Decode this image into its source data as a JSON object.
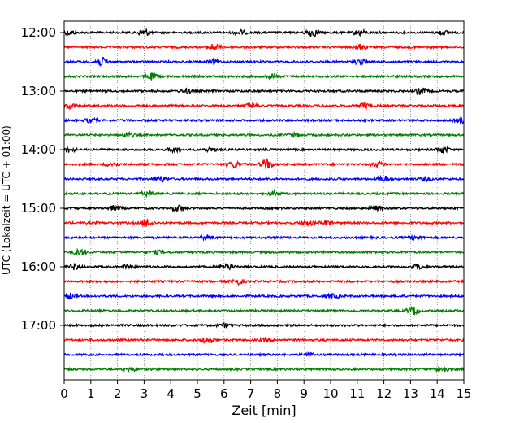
{
  "chart_data": {
    "type": "line",
    "title": "",
    "xlabel": "Zeit  [min]",
    "ylabel": "UTC (Lokalzeit = UTC + 01:00)",
    "xlim": [
      0,
      15
    ],
    "x_ticks": [
      "0",
      "1",
      "2",
      "3",
      "4",
      "5",
      "6",
      "7",
      "8",
      "9",
      "10",
      "11",
      "12",
      "13",
      "14",
      "15"
    ],
    "y_ticks": [
      "12:00",
      "13:00",
      "14:00",
      "15:00",
      "16:00",
      "17:00"
    ],
    "grid": "vertical dotted at each minute",
    "trace_interval_minutes": 15,
    "colors": [
      "#000000",
      "#ff0000",
      "#0000ff",
      "#008000"
    ],
    "traces": [
      {
        "start": "12:00",
        "color": "#000000",
        "bursts": [
          [
            0.2,
            0.8
          ],
          [
            3.0,
            1.4
          ],
          [
            6.6,
            0.9
          ],
          [
            9.3,
            1.6
          ],
          [
            11.1,
            1.0
          ],
          [
            14.2,
            0.8
          ]
        ]
      },
      {
        "start": "12:15",
        "color": "#ff0000",
        "bursts": [
          [
            5.6,
            1.2
          ],
          [
            11.1,
            1.0
          ]
        ]
      },
      {
        "start": "12:30",
        "color": "#0000ff",
        "bursts": [
          [
            1.4,
            1.6
          ],
          [
            5.6,
            0.8
          ],
          [
            11.1,
            1.0
          ]
        ]
      },
      {
        "start": "12:45",
        "color": "#008000",
        "bursts": [
          [
            3.3,
            1.2
          ],
          [
            7.8,
            0.8
          ]
        ]
      },
      {
        "start": "13:00",
        "color": "#000000",
        "bursts": [
          [
            4.6,
            0.7
          ],
          [
            13.4,
            1.3
          ]
        ]
      },
      {
        "start": "13:15",
        "color": "#ff0000",
        "bursts": [
          [
            0.2,
            1.0
          ],
          [
            7.0,
            0.9
          ],
          [
            11.3,
            1.2
          ]
        ]
      },
      {
        "start": "13:30",
        "color": "#0000ff",
        "bursts": [
          [
            1.0,
            0.8
          ],
          [
            14.9,
            0.9
          ]
        ]
      },
      {
        "start": "13:45",
        "color": "#008000",
        "bursts": [
          [
            2.4,
            0.9
          ],
          [
            8.6,
            0.7
          ]
        ]
      },
      {
        "start": "14:00",
        "color": "#000000",
        "bursts": [
          [
            0.2,
            1.0
          ],
          [
            4.1,
            0.9
          ],
          [
            5.5,
            0.8
          ],
          [
            14.2,
            1.3
          ]
        ]
      },
      {
        "start": "14:15",
        "color": "#ff0000",
        "bursts": [
          [
            1.8,
            0.8
          ],
          [
            6.4,
            1.2
          ],
          [
            7.6,
            2.0
          ],
          [
            11.8,
            0.9
          ]
        ]
      },
      {
        "start": "14:30",
        "color": "#0000ff",
        "bursts": [
          [
            3.6,
            1.0
          ],
          [
            12.0,
            1.1
          ],
          [
            13.6,
            0.8
          ]
        ]
      },
      {
        "start": "14:45",
        "color": "#008000",
        "bursts": [
          [
            3.1,
            0.8
          ],
          [
            7.9,
            0.9
          ]
        ]
      },
      {
        "start": "15:00",
        "color": "#000000",
        "bursts": [
          [
            1.9,
            1.0
          ],
          [
            4.3,
            1.2
          ],
          [
            11.7,
            0.7
          ]
        ]
      },
      {
        "start": "15:15",
        "color": "#ff0000",
        "bursts": [
          [
            3.1,
            1.4
          ],
          [
            9.1,
            1.1
          ],
          [
            9.8,
            0.9
          ]
        ]
      },
      {
        "start": "15:30",
        "color": "#0000ff",
        "bursts": [
          [
            5.4,
            0.8
          ],
          [
            13.2,
            1.0
          ]
        ]
      },
      {
        "start": "15:45",
        "color": "#008000",
        "bursts": [
          [
            0.6,
            1.3
          ],
          [
            3.5,
            0.7
          ]
        ]
      },
      {
        "start": "16:00",
        "color": "#000000",
        "bursts": [
          [
            0.4,
            1.1
          ],
          [
            2.4,
            0.8
          ],
          [
            6.1,
            1.3
          ],
          [
            13.3,
            0.9
          ]
        ]
      },
      {
        "start": "16:15",
        "color": "#ff0000",
        "bursts": [
          [
            6.5,
            1.2
          ]
        ]
      },
      {
        "start": "16:30",
        "color": "#0000ff",
        "bursts": [
          [
            0.2,
            1.2
          ],
          [
            10.1,
            0.8
          ]
        ]
      },
      {
        "start": "16:45",
        "color": "#008000",
        "bursts": [
          [
            13.1,
            1.4
          ]
        ]
      },
      {
        "start": "17:00",
        "color": "#000000",
        "bursts": [
          [
            6.0,
            0.7
          ]
        ]
      },
      {
        "start": "17:15",
        "color": "#ff0000",
        "bursts": [
          [
            5.4,
            1.3
          ],
          [
            7.6,
            0.7
          ]
        ]
      },
      {
        "start": "17:30",
        "color": "#0000ff",
        "bursts": [
          [
            9.2,
            0.6
          ]
        ]
      },
      {
        "start": "17:45",
        "color": "#008000",
        "bursts": [
          [
            2.5,
            0.6
          ],
          [
            14.2,
            1.2
          ]
        ]
      }
    ]
  }
}
